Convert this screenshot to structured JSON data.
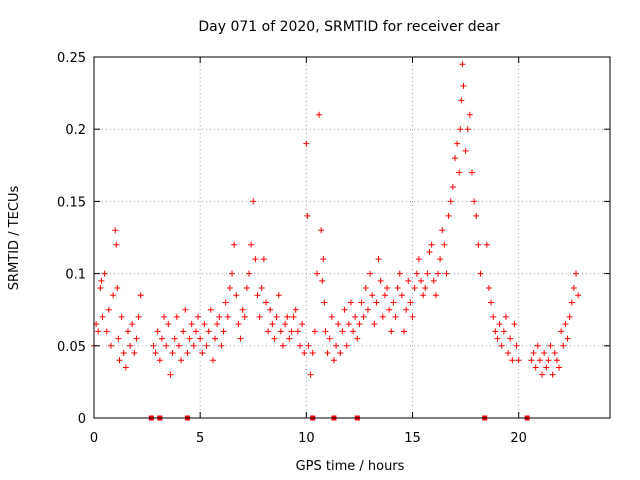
{
  "chart_data": {
    "type": "scatter",
    "title": "Day 071 of 2020, SRMTID for receiver dear",
    "xlabel": "GPS time / hours",
    "ylabel": "SRMTID / TECUs",
    "xlim": [
      0,
      24.3
    ],
    "ylim": [
      0,
      0.25
    ],
    "xticks": [
      0,
      5,
      10,
      15,
      20
    ],
    "xtick_labels": [
      "0",
      "5",
      "10",
      "15",
      "20"
    ],
    "yticks": [
      0,
      0.05,
      0.1,
      0.15,
      0.2,
      0.25
    ],
    "ytick_labels": [
      "0",
      "0.05",
      "0.1",
      "0.15",
      "0.2",
      "0.25"
    ],
    "grid": true,
    "marker": "+",
    "color": "#ff0000",
    "series": [
      {
        "name": "SRMTID",
        "x": [
          0.0,
          0.1,
          0.2,
          0.3,
          0.35,
          0.4,
          0.5,
          0.6,
          0.7,
          0.8,
          0.9,
          1.0,
          1.05,
          1.1,
          1.15,
          1.2,
          1.3,
          1.4,
          1.5,
          1.6,
          1.7,
          1.8,
          1.9,
          2.0,
          2.1,
          2.2,
          2.8,
          2.9,
          3.0,
          3.1,
          3.2,
          3.3,
          3.4,
          3.5,
          3.6,
          3.7,
          3.8,
          3.9,
          4.0,
          4.1,
          4.2,
          4.3,
          4.4,
          4.5,
          4.6,
          4.7,
          4.8,
          4.9,
          5.0,
          5.1,
          5.2,
          5.3,
          5.4,
          5.5,
          5.6,
          5.7,
          5.8,
          5.9,
          6.0,
          6.1,
          6.2,
          6.3,
          6.4,
          6.5,
          6.6,
          6.7,
          6.8,
          6.9,
          7.0,
          7.1,
          7.2,
          7.3,
          7.4,
          7.5,
          7.6,
          7.7,
          7.8,
          7.9,
          8.0,
          8.1,
          8.2,
          8.3,
          8.4,
          8.5,
          8.6,
          8.7,
          8.8,
          8.9,
          9.0,
          9.1,
          9.2,
          9.3,
          9.4,
          9.5,
          9.6,
          9.7,
          9.8,
          9.9,
          10.0,
          10.05,
          10.1,
          10.2,
          10.3,
          10.4,
          10.5,
          10.6,
          10.7,
          10.75,
          10.8,
          10.85,
          10.9,
          11.0,
          11.1,
          11.2,
          11.3,
          11.4,
          11.5,
          11.6,
          11.7,
          11.8,
          11.9,
          12.0,
          12.1,
          12.2,
          12.3,
          12.4,
          12.5,
          12.6,
          12.7,
          12.8,
          12.9,
          13.0,
          13.1,
          13.2,
          13.3,
          13.4,
          13.5,
          13.6,
          13.7,
          13.8,
          13.9,
          14.0,
          14.1,
          14.2,
          14.3,
          14.4,
          14.5,
          14.6,
          14.7,
          14.8,
          14.9,
          15.0,
          15.1,
          15.2,
          15.3,
          15.4,
          15.5,
          15.6,
          15.7,
          15.8,
          15.9,
          16.0,
          16.1,
          16.2,
          16.3,
          16.4,
          16.5,
          16.6,
          16.7,
          16.8,
          16.9,
          17.0,
          17.1,
          17.2,
          17.25,
          17.3,
          17.35,
          17.4,
          17.5,
          17.6,
          17.7,
          17.8,
          17.9,
          18.0,
          18.1,
          18.2,
          18.5,
          18.6,
          18.7,
          18.8,
          18.9,
          19.0,
          19.1,
          19.2,
          19.3,
          19.4,
          19.5,
          19.6,
          19.7,
          19.8,
          19.9,
          20.0,
          20.6,
          20.7,
          20.8,
          20.9,
          21.0,
          21.1,
          21.2,
          21.3,
          21.4,
          21.5,
          21.6,
          21.7,
          21.8,
          21.9,
          22.0,
          22.1,
          22.2,
          22.3,
          22.4,
          22.5,
          22.6,
          22.7,
          22.8
        ],
        "y": [
          0.05,
          0.065,
          0.06,
          0.09,
          0.095,
          0.07,
          0.1,
          0.06,
          0.075,
          0.05,
          0.085,
          0.13,
          0.12,
          0.09,
          0.055,
          0.04,
          0.07,
          0.045,
          0.035,
          0.06,
          0.05,
          0.065,
          0.045,
          0.055,
          0.07,
          0.085,
          0.05,
          0.045,
          0.06,
          0.04,
          0.055,
          0.07,
          0.05,
          0.065,
          0.03,
          0.045,
          0.055,
          0.07,
          0.05,
          0.04,
          0.06,
          0.075,
          0.045,
          0.055,
          0.065,
          0.05,
          0.06,
          0.07,
          0.055,
          0.045,
          0.065,
          0.05,
          0.06,
          0.075,
          0.04,
          0.055,
          0.065,
          0.07,
          0.05,
          0.06,
          0.08,
          0.07,
          0.09,
          0.1,
          0.12,
          0.085,
          0.065,
          0.055,
          0.075,
          0.07,
          0.09,
          0.1,
          0.12,
          0.15,
          0.11,
          0.085,
          0.07,
          0.09,
          0.11,
          0.08,
          0.06,
          0.075,
          0.065,
          0.055,
          0.07,
          0.085,
          0.06,
          0.05,
          0.065,
          0.07,
          0.055,
          0.06,
          0.07,
          0.075,
          0.06,
          0.05,
          0.065,
          0.045,
          0.19,
          0.14,
          0.05,
          0.03,
          0.045,
          0.06,
          0.1,
          0.21,
          0.13,
          0.095,
          0.11,
          0.08,
          0.06,
          0.045,
          0.055,
          0.07,
          0.04,
          0.05,
          0.065,
          0.045,
          0.06,
          0.075,
          0.05,
          0.065,
          0.08,
          0.06,
          0.07,
          0.055,
          0.065,
          0.08,
          0.07,
          0.09,
          0.075,
          0.1,
          0.085,
          0.065,
          0.08,
          0.11,
          0.095,
          0.07,
          0.085,
          0.09,
          0.075,
          0.06,
          0.08,
          0.07,
          0.09,
          0.1,
          0.085,
          0.06,
          0.075,
          0.095,
          0.08,
          0.07,
          0.09,
          0.1,
          0.11,
          0.095,
          0.085,
          0.09,
          0.1,
          0.115,
          0.12,
          0.095,
          0.085,
          0.1,
          0.11,
          0.13,
          0.12,
          0.1,
          0.14,
          0.15,
          0.16,
          0.18,
          0.19,
          0.17,
          0.2,
          0.22,
          0.245,
          0.23,
          0.185,
          0.2,
          0.21,
          0.17,
          0.15,
          0.14,
          0.12,
          0.1,
          0.12,
          0.09,
          0.08,
          0.07,
          0.06,
          0.055,
          0.065,
          0.05,
          0.06,
          0.07,
          0.045,
          0.055,
          0.04,
          0.065,
          0.05,
          0.04,
          0.04,
          0.045,
          0.035,
          0.05,
          0.04,
          0.03,
          0.045,
          0.035,
          0.04,
          0.05,
          0.03,
          0.045,
          0.04,
          0.035,
          0.06,
          0.05,
          0.065,
          0.055,
          0.07,
          0.08,
          0.09,
          0.1,
          0.085
        ]
      }
    ],
    "data_gaps_x": [
      2.7,
      3.1,
      4.4,
      10.3,
      11.3,
      12.4,
      18.4,
      20.4
    ]
  }
}
